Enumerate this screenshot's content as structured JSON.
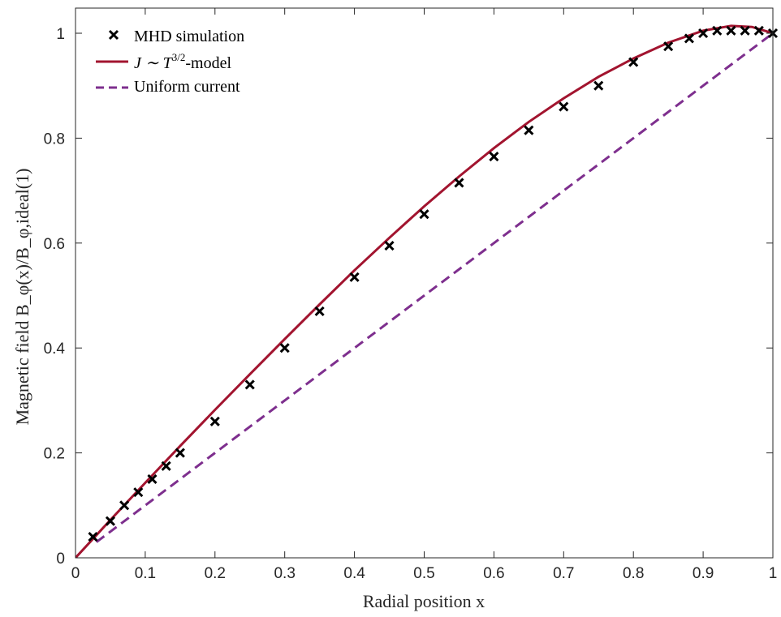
{
  "chart_data": {
    "type": "line",
    "xlabel": "Radial position x",
    "ylabel": "Magnetic field B_φ(x)/B_φ,ideal(1)",
    "xlim": [
      0,
      1
    ],
    "ylim": [
      0,
      1.05
    ],
    "xticks": [
      "0",
      "0.1",
      "0.2",
      "0.3",
      "0.4",
      "0.5",
      "0.6",
      "0.7",
      "0.8",
      "0.9",
      "1"
    ],
    "yticks": [
      "0",
      "0.2",
      "0.4",
      "0.6",
      "0.8",
      "1"
    ],
    "grid": false,
    "legend_position": "top-left",
    "legend": {
      "mhd": "MHD simulation",
      "model_prefix": "J ∼ T",
      "model_exp": "3/2",
      "model_suffix": "-model",
      "uniform": "Uniform current"
    },
    "colors": {
      "mhd": "#000000",
      "model": "#a2142f",
      "uniform": "#7e2f8e"
    },
    "series": [
      {
        "name": "MHD simulation",
        "style": "markers-x",
        "x": [
          0.025,
          0.05,
          0.07,
          0.09,
          0.11,
          0.13,
          0.15,
          0.2,
          0.25,
          0.3,
          0.35,
          0.4,
          0.45,
          0.5,
          0.55,
          0.6,
          0.65,
          0.7,
          0.75,
          0.8,
          0.85,
          0.88,
          0.9,
          0.92,
          0.94,
          0.96,
          0.98,
          1.0
        ],
        "y": [
          0.04,
          0.07,
          0.1,
          0.125,
          0.15,
          0.175,
          0.2,
          0.26,
          0.33,
          0.4,
          0.47,
          0.535,
          0.595,
          0.655,
          0.715,
          0.765,
          0.815,
          0.86,
          0.9,
          0.945,
          0.975,
          0.99,
          1.0,
          1.005,
          1.005,
          1.005,
          1.005,
          1.0
        ]
      },
      {
        "name": "J ∼ T^{3/2}-model",
        "style": "solid",
        "x": [
          0,
          0.05,
          0.1,
          0.15,
          0.2,
          0.25,
          0.3,
          0.35,
          0.4,
          0.45,
          0.5,
          0.55,
          0.6,
          0.65,
          0.7,
          0.75,
          0.8,
          0.85,
          0.9,
          0.94,
          0.97,
          1.0
        ],
        "y": [
          0,
          0.072,
          0.143,
          0.213,
          0.282,
          0.35,
          0.417,
          0.483,
          0.548,
          0.61,
          0.67,
          0.727,
          0.781,
          0.831,
          0.876,
          0.917,
          0.952,
          0.982,
          1.005,
          1.014,
          1.012,
          1.0
        ]
      },
      {
        "name": "Uniform current",
        "style": "dashed",
        "x": [
          0.03,
          1.0
        ],
        "y": [
          0.03,
          1.0
        ]
      }
    ]
  }
}
